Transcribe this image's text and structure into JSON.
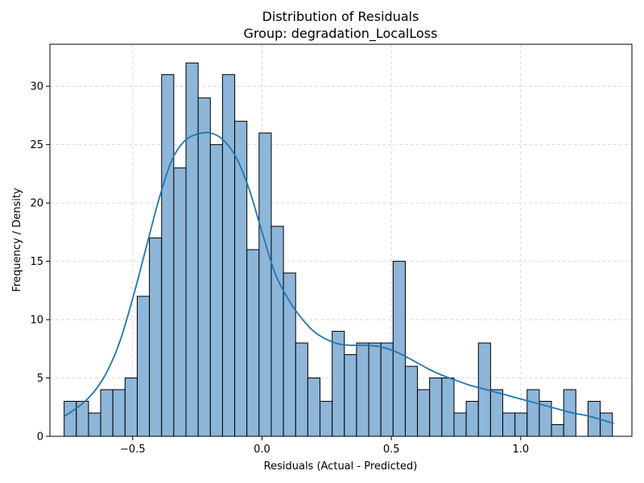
{
  "chart_data": {
    "type": "bar",
    "title": "Distribution of Residuals",
    "subtitle": "Group: degradation_LocalLoss",
    "xlabel": "Residuals (Actual - Predicted)",
    "ylabel": "Frequency / Density",
    "xlim": [
      -0.82,
      1.43
    ],
    "ylim": [
      0,
      33.6
    ],
    "grid": true,
    "bar_color": "#8db6d9",
    "line_color": "#1f77b4",
    "x_ticks": [
      -0.5,
      0.0,
      0.5,
      1.0
    ],
    "x_tick_labels": [
      "−0.5",
      "0.0",
      "0.5",
      "1.0"
    ],
    "y_ticks": [
      0,
      5,
      10,
      15,
      20,
      25,
      30
    ],
    "y_tick_labels": [
      "0",
      "5",
      "10",
      "15",
      "20",
      "25",
      "30"
    ],
    "bin_start": -0.765,
    "bin_width": 0.0471,
    "values": [
      3,
      3,
      2,
      4,
      4,
      5,
      12,
      17,
      31,
      23,
      32,
      29,
      25,
      31,
      27,
      16,
      26,
      18,
      14,
      8,
      5,
      3,
      9,
      7,
      8,
      8,
      8,
      15,
      6,
      4,
      5,
      5,
      2,
      3,
      8,
      4,
      2,
      2,
      4,
      3,
      1,
      4,
      0,
      3,
      2
    ],
    "kde": {
      "x": [
        -0.765,
        -0.7,
        -0.65,
        -0.6,
        -0.55,
        -0.5,
        -0.45,
        -0.4,
        -0.35,
        -0.3,
        -0.25,
        -0.2,
        -0.15,
        -0.1,
        -0.05,
        0.0,
        0.05,
        0.1,
        0.15,
        0.2,
        0.25,
        0.3,
        0.35,
        0.4,
        0.45,
        0.5,
        0.55,
        0.6,
        0.65,
        0.7,
        0.75,
        0.8,
        0.85,
        0.9,
        0.95,
        1.0,
        1.05,
        1.1,
        1.15,
        1.2,
        1.25,
        1.3,
        1.36
      ],
      "y": [
        1.7,
        2.7,
        3.8,
        5.5,
        8.1,
        11.8,
        16.0,
        20.2,
        23.6,
        25.3,
        25.9,
        26.0,
        25.4,
        23.9,
        21.2,
        17.5,
        14.0,
        11.8,
        10.2,
        9.0,
        8.3,
        7.9,
        7.8,
        7.8,
        7.7,
        7.4,
        6.9,
        6.3,
        5.7,
        5.2,
        4.8,
        4.4,
        4.1,
        3.8,
        3.5,
        3.2,
        2.9,
        2.6,
        2.3,
        2.0,
        1.8,
        1.5,
        1.1
      ]
    }
  }
}
